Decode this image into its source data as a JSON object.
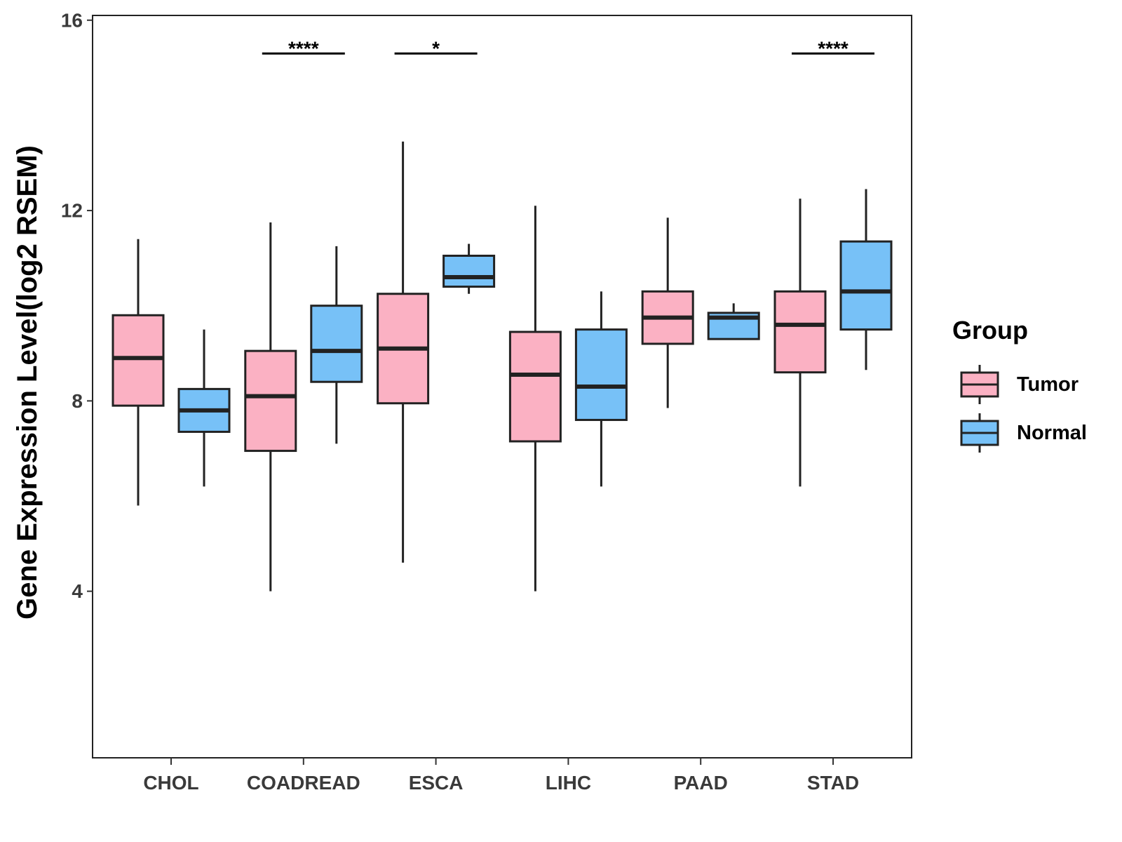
{
  "chart_data": {
    "type": "boxplot",
    "title": "",
    "xlabel": "",
    "ylabel": "Gene Expression Level(log2 RSEM)",
    "ylim": [
      0.5,
      16.1
    ],
    "yticks": [
      4,
      8,
      12,
      16
    ],
    "categories": [
      "CHOL",
      "COADREAD",
      "ESCA",
      "LIHC",
      "PAAD",
      "STAD"
    ],
    "legend": {
      "title": "Group",
      "position": "right"
    },
    "series": [
      {
        "name": "Tumor",
        "color": "#FBB1C3",
        "boxes": [
          {
            "category": "CHOL",
            "min": 5.8,
            "q1": 7.9,
            "median": 8.9,
            "q3": 9.8,
            "max": 11.4
          },
          {
            "category": "COADREAD",
            "min": 4.0,
            "q1": 6.95,
            "median": 8.1,
            "q3": 9.05,
            "max": 11.75
          },
          {
            "category": "ESCA",
            "min": 4.6,
            "q1": 7.95,
            "median": 9.1,
            "q3": 10.25,
            "max": 13.45
          },
          {
            "category": "LIHC",
            "min": 4.0,
            "q1": 7.15,
            "median": 8.55,
            "q3": 9.45,
            "max": 12.1
          },
          {
            "category": "PAAD",
            "min": 7.85,
            "q1": 9.2,
            "median": 9.75,
            "q3": 10.3,
            "max": 11.85
          },
          {
            "category": "STAD",
            "min": 6.2,
            "q1": 8.6,
            "median": 9.6,
            "q3": 10.3,
            "max": 12.25
          }
        ]
      },
      {
        "name": "Normal",
        "color": "#77C1F7",
        "boxes": [
          {
            "category": "CHOL",
            "min": 6.2,
            "q1": 7.35,
            "median": 7.8,
            "q3": 8.25,
            "max": 9.5
          },
          {
            "category": "COADREAD",
            "min": 7.1,
            "q1": 8.4,
            "median": 9.05,
            "q3": 10.0,
            "max": 11.25
          },
          {
            "category": "ESCA",
            "min": 10.25,
            "q1": 10.4,
            "median": 10.6,
            "q3": 11.05,
            "max": 11.3
          },
          {
            "category": "LIHC",
            "min": 6.2,
            "q1": 7.6,
            "median": 8.3,
            "q3": 9.5,
            "max": 10.3
          },
          {
            "category": "PAAD",
            "min": 9.3,
            "q1": 9.3,
            "median": 9.75,
            "q3": 9.85,
            "max": 10.05
          },
          {
            "category": "STAD",
            "min": 8.65,
            "q1": 9.5,
            "median": 10.3,
            "q3": 11.35,
            "max": 12.45
          }
        ]
      }
    ],
    "significance": [
      {
        "category": "COADREAD",
        "label": "****",
        "y": 15.3
      },
      {
        "category": "ESCA",
        "label": "*",
        "y": 15.3
      },
      {
        "category": "STAD",
        "label": "****",
        "y": 15.3
      }
    ]
  }
}
